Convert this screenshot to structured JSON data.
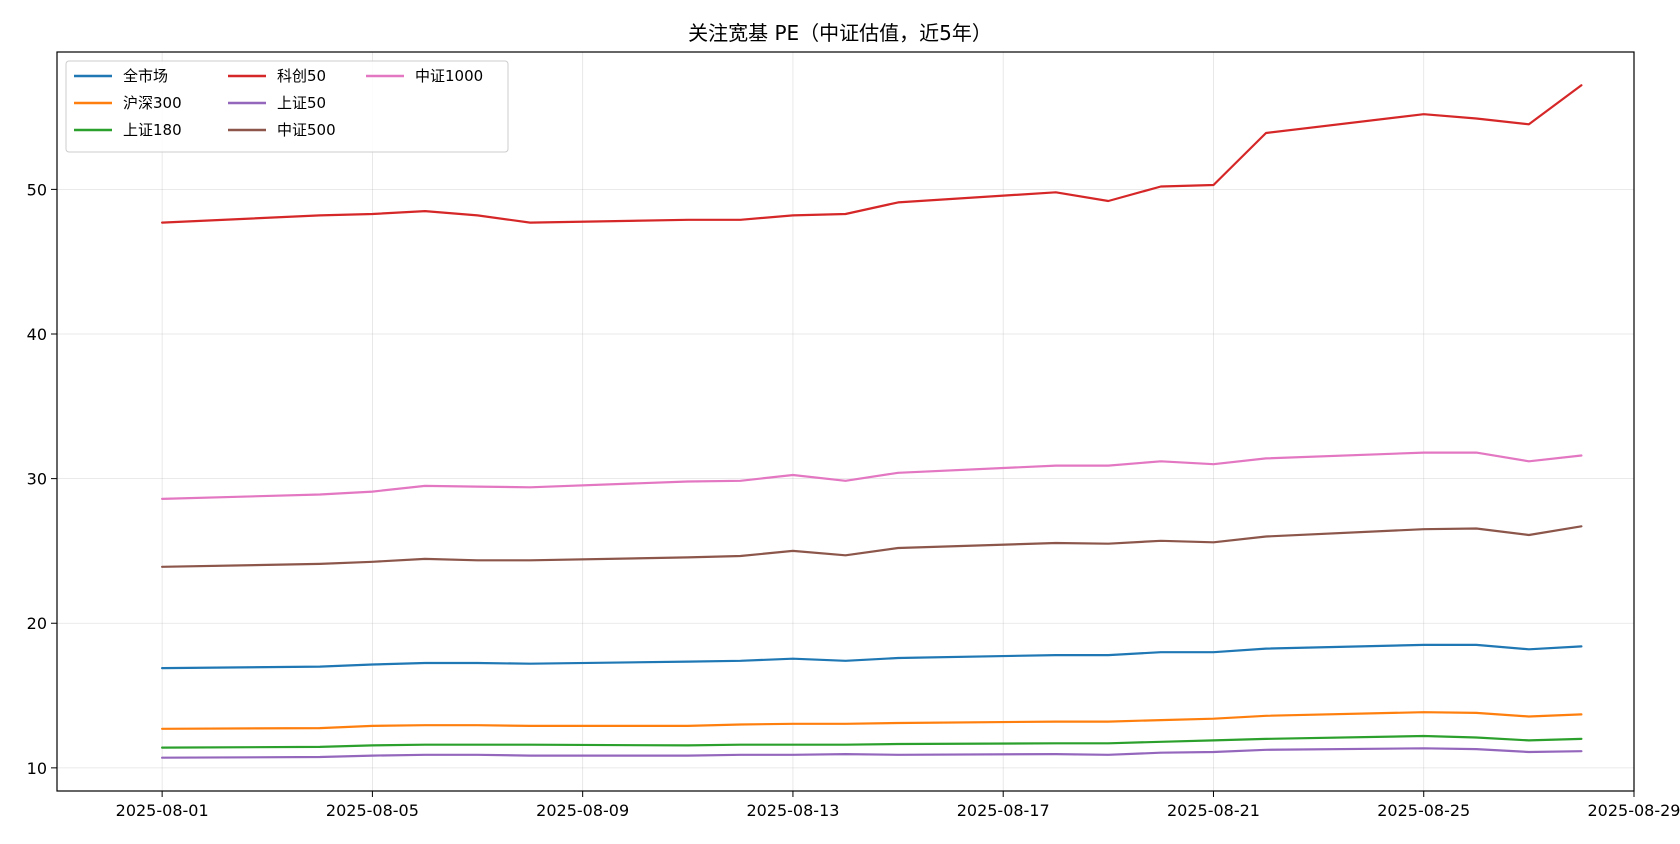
{
  "chart_data": {
    "type": "line",
    "title": "关注宽基 PE（中证估值，近5年）",
    "xlabel": "",
    "ylabel": "",
    "grid": true,
    "legend_position": "top-left",
    "legend_columns": 3,
    "x_ticks": [
      "2025-08-01",
      "2025-08-05",
      "2025-08-09",
      "2025-08-13",
      "2025-08-17",
      "2025-08-21",
      "2025-08-25",
      "2025-08-29"
    ],
    "y_ticks": [
      10,
      20,
      30,
      40,
      50
    ],
    "xlim": [
      "2025-07-30",
      "2025-08-29"
    ],
    "ylim": [
      8.4,
      59.5
    ],
    "x": [
      "2025-08-01",
      "2025-08-04",
      "2025-08-05",
      "2025-08-06",
      "2025-08-07",
      "2025-08-08",
      "2025-08-11",
      "2025-08-12",
      "2025-08-13",
      "2025-08-14",
      "2025-08-15",
      "2025-08-18",
      "2025-08-19",
      "2025-08-20",
      "2025-08-21",
      "2025-08-22",
      "2025-08-25",
      "2025-08-26",
      "2025-08-27",
      "2025-08-28"
    ],
    "series": [
      {
        "name": "全市场",
        "color": "#1f77b4",
        "values": [
          16.9,
          17.0,
          17.15,
          17.25,
          17.25,
          17.2,
          17.35,
          17.4,
          17.55,
          17.4,
          17.6,
          17.8,
          17.8,
          18.0,
          18.0,
          18.25,
          18.5,
          18.5,
          18.2,
          18.4
        ]
      },
      {
        "name": "沪深300",
        "color": "#ff7f0e",
        "values": [
          12.7,
          12.75,
          12.9,
          12.95,
          12.95,
          12.9,
          12.9,
          13.0,
          13.05,
          13.05,
          13.1,
          13.2,
          13.2,
          13.3,
          13.4,
          13.6,
          13.85,
          13.8,
          13.55,
          13.7
        ]
      },
      {
        "name": "上证180",
        "color": "#2ca02c",
        "values": [
          11.4,
          11.45,
          11.55,
          11.6,
          11.6,
          11.6,
          11.55,
          11.6,
          11.6,
          11.6,
          11.65,
          11.7,
          11.7,
          11.8,
          11.9,
          12.0,
          12.2,
          12.1,
          11.9,
          12.0
        ]
      },
      {
        "name": "科创50",
        "color": "#d62728",
        "values": [
          47.7,
          48.2,
          48.3,
          48.5,
          48.2,
          47.7,
          47.9,
          47.9,
          48.2,
          48.3,
          49.1,
          49.8,
          49.2,
          50.2,
          50.3,
          53.9,
          55.2,
          54.9,
          54.5,
          57.2
        ]
      },
      {
        "name": "上证50",
        "color": "#9467bd",
        "values": [
          10.7,
          10.75,
          10.85,
          10.9,
          10.9,
          10.85,
          10.85,
          10.9,
          10.9,
          10.95,
          10.9,
          10.95,
          10.9,
          11.05,
          11.1,
          11.25,
          11.35,
          11.3,
          11.1,
          11.15
        ]
      },
      {
        "name": "中证500",
        "color": "#8c564b",
        "values": [
          23.9,
          24.1,
          24.25,
          24.45,
          24.35,
          24.35,
          24.55,
          24.65,
          25.0,
          24.7,
          25.2,
          25.55,
          25.5,
          25.7,
          25.6,
          26.0,
          26.5,
          26.55,
          26.1,
          26.7
        ]
      },
      {
        "name": "中证1000",
        "color": "#e377c2",
        "values": [
          28.6,
          28.9,
          29.1,
          29.5,
          29.45,
          29.4,
          29.8,
          29.85,
          30.25,
          29.85,
          30.4,
          30.9,
          30.9,
          31.2,
          31.0,
          31.4,
          31.8,
          31.8,
          31.2,
          31.6
        ]
      }
    ]
  }
}
